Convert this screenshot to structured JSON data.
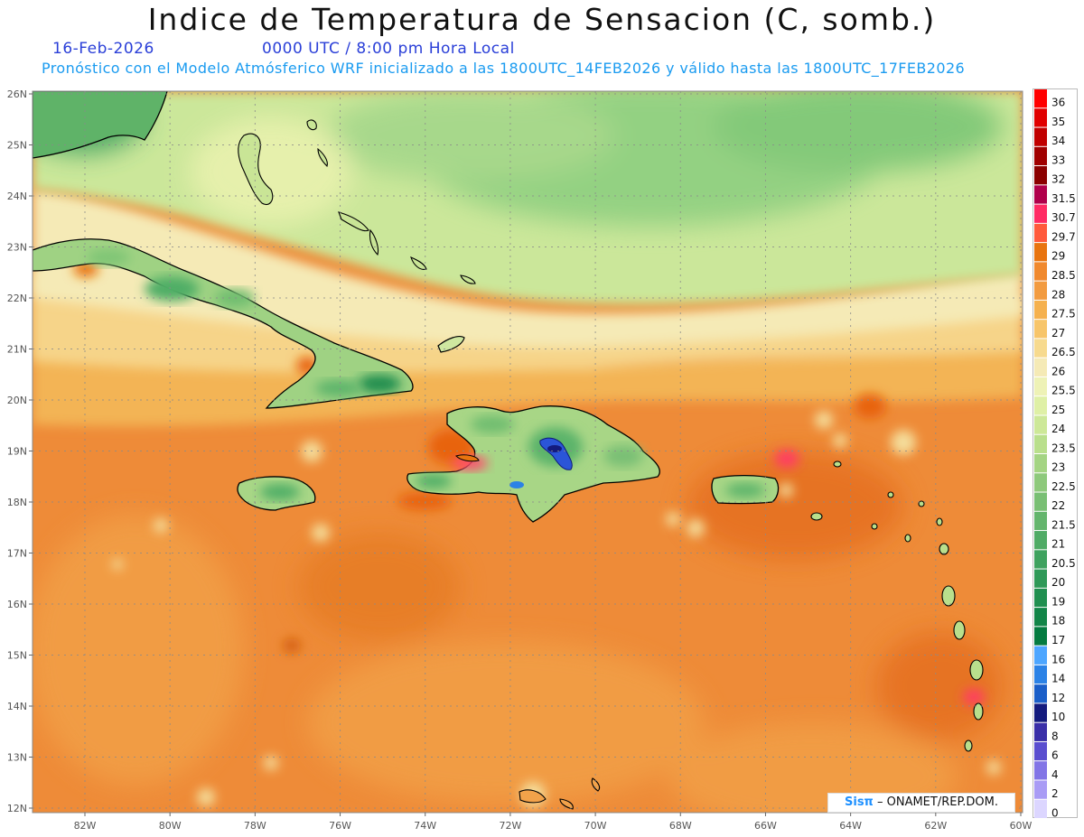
{
  "title": "Indice de Temperatura de Sensacion (C, somb.)",
  "date": "16-Feb-2026",
  "time": "0000 UTC / 8:00 pm Hora Local",
  "subtitle": "Pronóstico con el Modelo Atmósferico WRF inicializado a las 1800UTC_14FEB2026 y válido hasta las  1800UTC_17FEB2026",
  "credit": {
    "brand": "Sisπ",
    "text": " – ONAMET/REP.DOM."
  },
  "axes": {
    "lat_labels": [
      "26N",
      "25N",
      "24N",
      "23N",
      "22N",
      "21N",
      "20N",
      "19N",
      "18N",
      "17N",
      "16N",
      "15N",
      "14N",
      "13N",
      "12N"
    ],
    "lon_labels": [
      "82W",
      "80W",
      "78W",
      "76W",
      "74W",
      "72W",
      "70W",
      "68W",
      "66W",
      "64W",
      "62W",
      "60W"
    ]
  },
  "legend": [
    {
      "label": "36",
      "color": "#ff0000"
    },
    {
      "label": "35",
      "color": "#e00000"
    },
    {
      "label": "34",
      "color": "#c00000"
    },
    {
      "label": "33",
      "color": "#a00000"
    },
    {
      "label": "32",
      "color": "#8b0000"
    },
    {
      "label": "31.5",
      "color": "#b0004b"
    },
    {
      "label": "30.7",
      "color": "#ff2b64"
    },
    {
      "label": "29.7",
      "color": "#ff5a3c"
    },
    {
      "label": "29",
      "color": "#e8740f"
    },
    {
      "label": "28.5",
      "color": "#f0892e"
    },
    {
      "label": "28",
      "color": "#f29b40"
    },
    {
      "label": "27.5",
      "color": "#f5b14f"
    },
    {
      "label": "27",
      "color": "#f7c56a"
    },
    {
      "label": "26.5",
      "color": "#f7da8e"
    },
    {
      "label": "26",
      "color": "#f5eab6"
    },
    {
      "label": "25.5",
      "color": "#eef2b6"
    },
    {
      "label": "25",
      "color": "#dff0a6"
    },
    {
      "label": "24",
      "color": "#cde898"
    },
    {
      "label": "23.5",
      "color": "#b9df8c"
    },
    {
      "label": "23",
      "color": "#a4d483"
    },
    {
      "label": "22.5",
      "color": "#8ec97c"
    },
    {
      "label": "22",
      "color": "#79bf74"
    },
    {
      "label": "21.5",
      "color": "#64b56d"
    },
    {
      "label": "21",
      "color": "#50ab66"
    },
    {
      "label": "20.5",
      "color": "#3fa25f"
    },
    {
      "label": "20",
      "color": "#2f9958"
    },
    {
      "label": "19",
      "color": "#208f50"
    },
    {
      "label": "18",
      "color": "#128548"
    },
    {
      "label": "17",
      "color": "#047b40"
    },
    {
      "label": "16",
      "color": "#4da6ff"
    },
    {
      "label": "14",
      "color": "#2b82e6"
    },
    {
      "label": "12",
      "color": "#1a5ec8"
    },
    {
      "label": "10",
      "color": "#141b7e"
    },
    {
      "label": "8",
      "color": "#3a2fa8"
    },
    {
      "label": "6",
      "color": "#5a4ecf"
    },
    {
      "label": "4",
      "color": "#8275e6"
    },
    {
      "label": "2",
      "color": "#a99cf5"
    },
    {
      "label": "0",
      "color": "#dcd6ff"
    }
  ],
  "colors": {
    "ocean_orange": "#ee8b38",
    "ocean_light": "#f2a24a",
    "atlantic_green": "#b5dc8a",
    "band_yellow": "#f6e9b0",
    "land_green": "#5cb46a",
    "deep_green": "#1d8c4e",
    "hot_pink": "#ff3c64",
    "cold_blue": "#2b55d8",
    "coast": "#000000"
  }
}
